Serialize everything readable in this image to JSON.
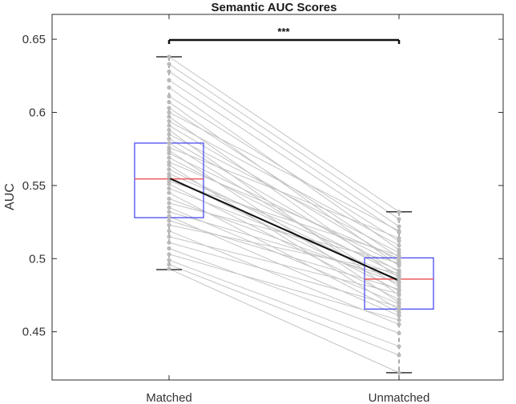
{
  "chart_data": {
    "type": "box",
    "title": "Semantic AUC Scores",
    "xlabel": "",
    "ylabel": "AUC",
    "categories": [
      "Matched",
      "Unmatched"
    ],
    "ylim": [
      0.417,
      0.667
    ],
    "yticks": [
      0.45,
      0.5,
      0.55,
      0.6,
      0.65
    ],
    "ytick_labels": [
      "0.45",
      "0.5",
      "0.55",
      "0.6",
      "0.65"
    ],
    "grid": false,
    "significance": {
      "label": "***",
      "between": [
        "Matched",
        "Unmatched"
      ],
      "y": 0.6495
    },
    "boxes": [
      {
        "category": "Matched",
        "whisker_low": 0.4925,
        "q1": 0.528,
        "median": 0.5545,
        "q3": 0.579,
        "whisker_high": 0.638
      },
      {
        "category": "Unmatched",
        "whisker_low": 0.422,
        "q1": 0.4655,
        "median": 0.486,
        "q3": 0.5005,
        "whisker_high": 0.532
      }
    ],
    "mean_line": {
      "from": 0.555,
      "to": 0.485
    },
    "paired_points": {
      "Matched": [
        0.638,
        0.633,
        0.628,
        0.622,
        0.617,
        0.611,
        0.607,
        0.603,
        0.6,
        0.597,
        0.594,
        0.591,
        0.588,
        0.585,
        0.582,
        0.579,
        0.576,
        0.574,
        0.572,
        0.569,
        0.566,
        0.564,
        0.561,
        0.558,
        0.556,
        0.553,
        0.551,
        0.548,
        0.545,
        0.541,
        0.538,
        0.535,
        0.532,
        0.529,
        0.526,
        0.523,
        0.519,
        0.515,
        0.511,
        0.507,
        0.503,
        0.499,
        0.496,
        0.493
      ],
      "Unmatched": [
        0.532,
        0.527,
        0.522,
        0.518,
        0.506,
        0.512,
        0.495,
        0.501,
        0.519,
        0.487,
        0.509,
        0.498,
        0.475,
        0.504,
        0.491,
        0.481,
        0.514,
        0.47,
        0.496,
        0.489,
        0.5,
        0.465,
        0.484,
        0.492,
        0.478,
        0.502,
        0.472,
        0.488,
        0.463,
        0.483,
        0.497,
        0.469,
        0.486,
        0.461,
        0.479,
        0.49,
        0.455,
        0.476,
        0.467,
        0.449,
        0.458,
        0.44,
        0.434,
        0.422
      ]
    },
    "colors": {
      "box": "#4b4bf0",
      "median": "#ee5a5a",
      "whisker": "#6e6e6e",
      "points": "#b9b9b9",
      "pair_lines": "#c4c4c4",
      "mean_line": "#111111",
      "axis": "#2b2b2b",
      "text": "#333333"
    }
  }
}
